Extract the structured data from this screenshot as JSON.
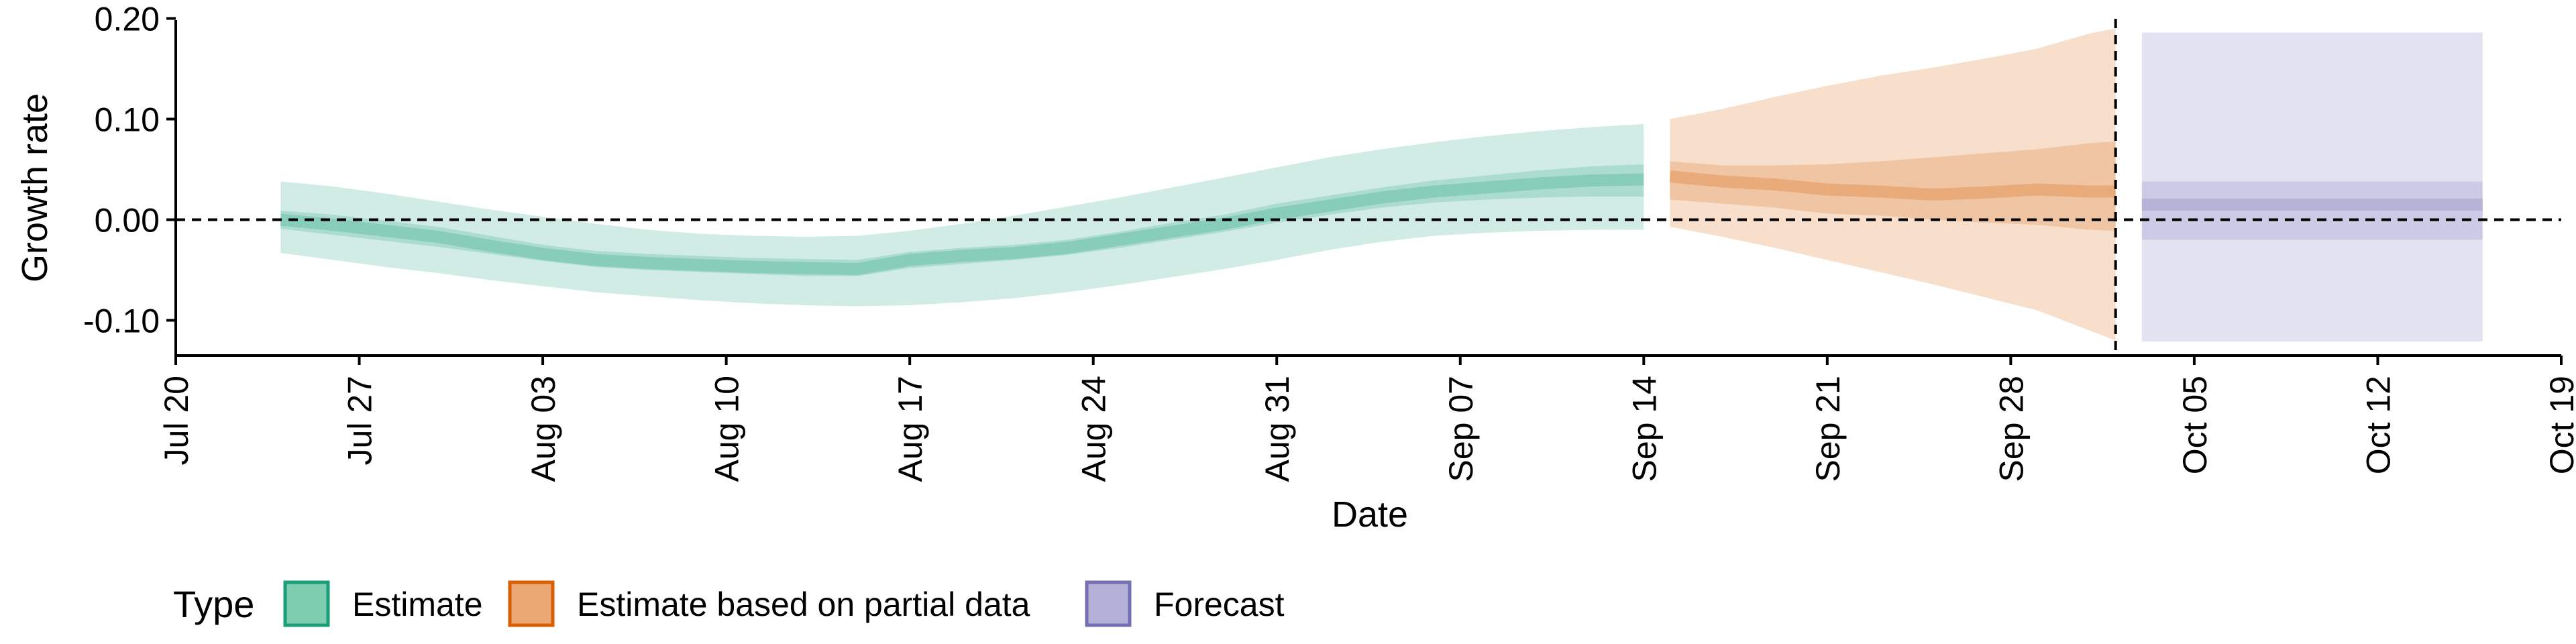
{
  "chart_data": {
    "type": "area",
    "xlabel": "Date",
    "ylabel": "Growth rate",
    "x_range": [
      "2020-07-20",
      "2020-10-19"
    ],
    "ylim": [
      -0.135,
      0.205
    ],
    "x_ticks": [
      {
        "date": "2020-07-20",
        "label": "Jul 20"
      },
      {
        "date": "2020-07-27",
        "label": "Jul 27"
      },
      {
        "date": "2020-08-03",
        "label": "Aug 03"
      },
      {
        "date": "2020-08-10",
        "label": "Aug 10"
      },
      {
        "date": "2020-08-17",
        "label": "Aug 17"
      },
      {
        "date": "2020-08-24",
        "label": "Aug 24"
      },
      {
        "date": "2020-08-31",
        "label": "Aug 31"
      },
      {
        "date": "2020-09-07",
        "label": "Sep 07"
      },
      {
        "date": "2020-09-14",
        "label": "Sep 14"
      },
      {
        "date": "2020-09-21",
        "label": "Sep 21"
      },
      {
        "date": "2020-09-28",
        "label": "Sep 28"
      },
      {
        "date": "2020-10-05",
        "label": "Oct 05"
      },
      {
        "date": "2020-10-12",
        "label": "Oct 12"
      },
      {
        "date": "2020-10-19",
        "label": "Oct 19"
      }
    ],
    "y_ticks": [
      {
        "value": 0.2,
        "label": "0.20"
      },
      {
        "value": 0.1,
        "label": "0.10"
      },
      {
        "value": 0.0,
        "label": "0.00"
      },
      {
        "value": -0.1,
        "label": "-0.10"
      }
    ],
    "reference_lines": {
      "horizontal_dashed_y": 0.0,
      "vertical_dashed_date": "2020-10-02"
    },
    "grid": false,
    "legend": {
      "title": "Type",
      "position": "bottom-left",
      "entries": [
        {
          "label": "Estimate",
          "fill": "#7fcdb0",
          "stroke": "#1b9e77"
        },
        {
          "label": "Estimate based on partial data",
          "fill": "#eba774",
          "stroke": "#d95f02"
        },
        {
          "label": "Forecast",
          "fill": "#b3b1d8",
          "stroke": "#7570b3"
        }
      ]
    },
    "series": [
      {
        "name": "Estimate",
        "color": "#1b9e77",
        "dates": [
          "2020-07-24",
          "2020-07-26",
          "2020-07-28",
          "2020-07-30",
          "2020-08-01",
          "2020-08-03",
          "2020-08-05",
          "2020-08-07",
          "2020-08-09",
          "2020-08-11",
          "2020-08-13",
          "2020-08-15",
          "2020-08-17",
          "2020-08-19",
          "2020-08-21",
          "2020-08-23",
          "2020-08-25",
          "2020-08-27",
          "2020-08-29",
          "2020-08-31",
          "2020-09-02",
          "2020-09-04",
          "2020-09-06",
          "2020-09-08",
          "2020-09-10",
          "2020-09-12",
          "2020-09-14"
        ],
        "median": [
          0.0,
          -0.005,
          -0.011,
          -0.017,
          -0.026,
          -0.034,
          -0.04,
          -0.043,
          -0.045,
          -0.047,
          -0.048,
          -0.049,
          -0.04,
          -0.036,
          -0.033,
          -0.028,
          -0.02,
          -0.012,
          -0.004,
          0.006,
          0.014,
          0.022,
          0.028,
          0.032,
          0.036,
          0.039,
          0.04
        ],
        "lower50": [
          -0.009,
          -0.015,
          -0.021,
          -0.027,
          -0.034,
          -0.041,
          -0.047,
          -0.05,
          -0.052,
          -0.054,
          -0.056,
          -0.056,
          -0.048,
          -0.044,
          -0.04,
          -0.035,
          -0.028,
          -0.02,
          -0.012,
          -0.003,
          0.005,
          0.012,
          0.017,
          0.02,
          0.022,
          0.023,
          0.023
        ],
        "upper50": [
          0.009,
          0.005,
          -0.001,
          -0.007,
          -0.016,
          -0.025,
          -0.031,
          -0.034,
          -0.036,
          -0.038,
          -0.039,
          -0.04,
          -0.032,
          -0.028,
          -0.025,
          -0.02,
          -0.012,
          -0.003,
          0.005,
          0.016,
          0.024,
          0.032,
          0.039,
          0.044,
          0.049,
          0.053,
          0.055
        ],
        "lower90": [
          -0.033,
          -0.04,
          -0.047,
          -0.053,
          -0.06,
          -0.066,
          -0.072,
          -0.076,
          -0.08,
          -0.083,
          -0.085,
          -0.086,
          -0.085,
          -0.082,
          -0.078,
          -0.072,
          -0.065,
          -0.057,
          -0.049,
          -0.04,
          -0.03,
          -0.022,
          -0.016,
          -0.013,
          -0.011,
          -0.01,
          -0.01
        ],
        "upper90": [
          0.038,
          0.033,
          0.026,
          0.018,
          0.01,
          0.003,
          -0.004,
          -0.01,
          -0.014,
          -0.016,
          -0.017,
          -0.016,
          -0.011,
          -0.004,
          0.004,
          0.013,
          0.022,
          0.032,
          0.042,
          0.052,
          0.062,
          0.07,
          0.077,
          0.083,
          0.088,
          0.092,
          0.095
        ]
      },
      {
        "name": "Estimate based on partial data",
        "color": "#d95f02",
        "dates": [
          "2020-09-15",
          "2020-09-17",
          "2020-09-19",
          "2020-09-21",
          "2020-09-23",
          "2020-09-25",
          "2020-09-27",
          "2020-09-29",
          "2020-10-01",
          "2020-10-02"
        ],
        "median": [
          0.043,
          0.038,
          0.035,
          0.03,
          0.028,
          0.025,
          0.027,
          0.03,
          0.028,
          0.028
        ],
        "lower50": [
          0.02,
          0.016,
          0.012,
          0.006,
          0.004,
          0.0,
          -0.003,
          -0.005,
          -0.01,
          -0.011
        ],
        "upper50": [
          0.058,
          0.054,
          0.054,
          0.055,
          0.058,
          0.062,
          0.066,
          0.07,
          0.076,
          0.078
        ],
        "lower90": [
          -0.007,
          -0.017,
          -0.028,
          -0.04,
          -0.052,
          -0.064,
          -0.077,
          -0.09,
          -0.11,
          -0.12
        ],
        "upper90": [
          0.1,
          0.11,
          0.122,
          0.133,
          0.143,
          0.151,
          0.16,
          0.17,
          0.185,
          0.19
        ]
      },
      {
        "name": "Forecast",
        "color": "#7570b3",
        "dates": [
          "2020-10-03",
          "2020-10-16"
        ],
        "median": [
          0.015,
          0.015
        ],
        "lower50": [
          -0.02,
          -0.02
        ],
        "upper50": [
          0.038,
          0.038
        ],
        "lower90": [
          -0.121,
          -0.121
        ],
        "upper90": [
          0.186,
          0.186
        ]
      }
    ]
  }
}
